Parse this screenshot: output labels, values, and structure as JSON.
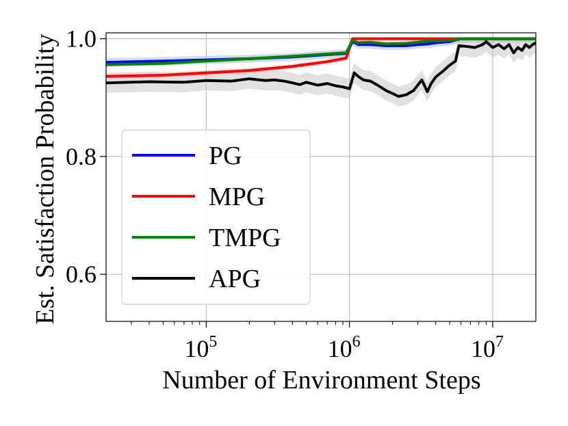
{
  "chart_data": {
    "type": "line",
    "title": "",
    "xlabel": "Number of Environment Steps",
    "ylabel": "Est. Satisfaction Probability",
    "x_scale": "log",
    "xlim": [
      20000,
      20000000
    ],
    "ylim": [
      0.52,
      1.01
    ],
    "grid": true,
    "legend_position": "lower-left",
    "x_ticks": [
      {
        "value": 100000,
        "base": "10",
        "exp": "5"
      },
      {
        "value": 1000000,
        "base": "10",
        "exp": "6"
      },
      {
        "value": 10000000,
        "base": "10",
        "exp": "7"
      }
    ],
    "y_ticks": [
      {
        "value": 0.6,
        "label": "0.6"
      },
      {
        "value": 0.8,
        "label": "0.8"
      },
      {
        "value": 1.0,
        "label": "1.0"
      }
    ],
    "series": [
      {
        "name": "PG",
        "color": "#0000ff",
        "band_color": "#b0c4de",
        "band": 0.007,
        "x": [
          20000,
          50000,
          100000,
          200000,
          400000,
          700000,
          950000,
          1050000,
          1150000,
          1400000,
          1800000,
          2500000,
          3000000,
          3500000,
          4000000,
          5000000,
          6000000,
          20000000
        ],
        "y": [
          0.96,
          0.962,
          0.964,
          0.966,
          0.969,
          0.973,
          0.975,
          0.995,
          0.99,
          0.99,
          0.988,
          0.988,
          0.99,
          0.991,
          0.993,
          0.995,
          1.0,
          1.0
        ]
      },
      {
        "name": "MPG",
        "color": "#ff0000",
        "band_color": "#f2b0b0",
        "band": 0.004,
        "x": [
          20000,
          50000,
          100000,
          200000,
          400000,
          700000,
          950000,
          1050000,
          1150000,
          20000000
        ],
        "y": [
          0.936,
          0.938,
          0.942,
          0.946,
          0.953,
          0.961,
          0.967,
          1.0,
          1.0,
          1.0
        ]
      },
      {
        "name": "TMPG",
        "color": "#008000",
        "band_color": "#a8d0a8",
        "band": 0.004,
        "x": [
          20000,
          50000,
          100000,
          200000,
          400000,
          700000,
          950000,
          1050000,
          1150000,
          1400000,
          1800000,
          2500000,
          3000000,
          3500000,
          4500000,
          5500000,
          6000000,
          20000000
        ],
        "y": [
          0.956,
          0.958,
          0.962,
          0.966,
          0.97,
          0.974,
          0.976,
          0.997,
          0.993,
          0.994,
          0.991,
          0.992,
          0.994,
          0.996,
          0.997,
          0.998,
          1.0,
          1.0
        ]
      },
      {
        "name": "APG",
        "color": "#000000",
        "band_color": "#c8c8c8",
        "band": 0.017,
        "x": [
          20000,
          40000,
          70000,
          100000,
          150000,
          200000,
          260000,
          300000,
          350000,
          400000,
          450000,
          500000,
          600000,
          700000,
          800000,
          900000,
          1000000,
          1080000,
          1150000,
          1250000,
          1400000,
          1600000,
          1800000,
          2000000,
          2200000,
          2500000,
          2800000,
          3200000,
          3500000,
          3700000,
          4000000,
          4500000,
          5000000,
          5500000,
          5800000,
          6500000,
          7500000,
          8500000,
          9000000,
          10000000,
          11000000,
          12000000,
          13000000,
          14000000,
          15000000,
          16000000,
          17000000,
          18000000,
          19000000,
          20000000
        ],
        "y": [
          0.925,
          0.927,
          0.926,
          0.929,
          0.928,
          0.932,
          0.929,
          0.93,
          0.928,
          0.925,
          0.922,
          0.926,
          0.921,
          0.924,
          0.92,
          0.918,
          0.915,
          0.942,
          0.936,
          0.93,
          0.928,
          0.92,
          0.912,
          0.907,
          0.902,
          0.905,
          0.912,
          0.93,
          0.91,
          0.923,
          0.935,
          0.945,
          0.955,
          0.962,
          0.988,
          0.987,
          0.985,
          0.99,
          0.995,
          0.985,
          0.99,
          0.983,
          0.99,
          0.976,
          0.985,
          0.98,
          0.99,
          0.985,
          0.99,
          0.993
        ]
      }
    ]
  }
}
